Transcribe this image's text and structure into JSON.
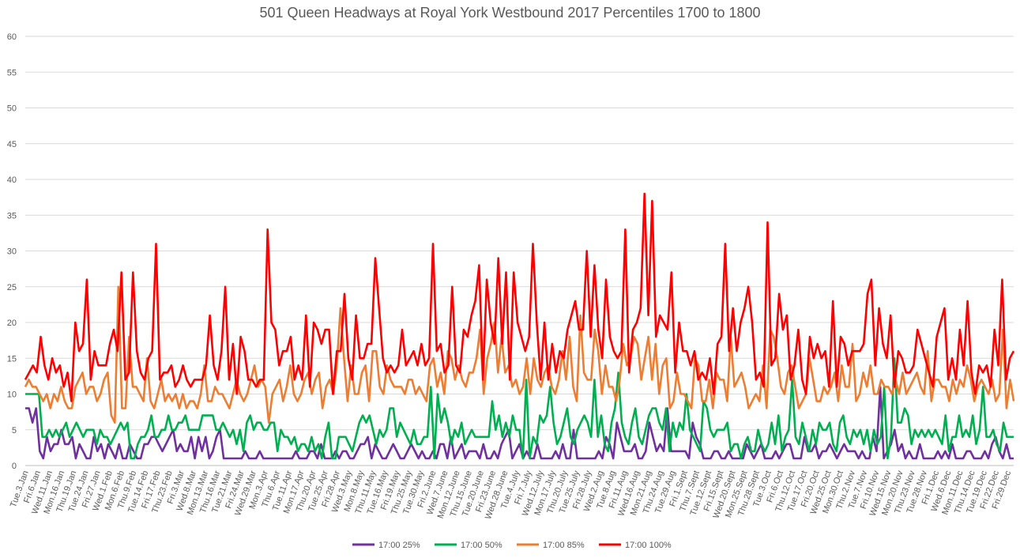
{
  "chart_data": {
    "type": "line",
    "title": "501 Queen Headways at Royal York Westbound 2017 Percentiles 1700 to 1800",
    "xlabel": "",
    "ylabel": "",
    "ylim": [
      0,
      60
    ],
    "yticks": [
      0,
      5,
      10,
      15,
      20,
      25,
      30,
      35,
      40,
      45,
      50,
      55,
      60
    ],
    "grid": true,
    "legend_position": "bottom",
    "x_tick_labels": [
      "Tue.3.Jan",
      "Fri.6.Jan",
      "Wed.11.Jan",
      "Mon.16.Jan",
      "Thu.19.Jan",
      "Tue.24.Jan",
      "Fri.27.Jan",
      "Wed.1.Feb",
      "Mon.6.Feb",
      "Thu.9.Feb",
      "Tue.14.Feb",
      "Fri.17.Feb",
      "Thu.23.Feb",
      "Fri.3.Mar",
      "Wed.8.Mar",
      "Mon.13.Mar",
      "Thu.16.Mar",
      "Tue.21.Mar",
      "Fri.24.Mar",
      "Wed.29.Mar",
      "Mon.3.Apr",
      "Thu.6.Apr",
      "Tue.11.Apr",
      "Mon.17.Apr",
      "Thu.20.Apr",
      "Tue.25.Apr",
      "Fri.28.Apr",
      "Wed.3.May",
      "Mon.8.May",
      "Thu.11.May",
      "Tue.16.May",
      "Fri.19.May",
      "Thu.25.May",
      "Tue.30.May",
      "Fri.2.June",
      "Wed.7.June",
      "Mon.12.June",
      "Thu.15.June",
      "Tue.20.June",
      "Fri.23.June",
      "Wed.28.June",
      "Tue.4.July",
      "Fri.7.July",
      "Wed.12.July",
      "Mon.17.July",
      "Thu.20.July",
      "Tue.25.July",
      "Fri.28.July",
      "Wed.2.Aug",
      "Tue.8.Aug",
      "Fri.11.Aug",
      "Wed.16.Aug",
      "Mon.21.Aug",
      "Thu.24.Aug",
      "Tue.29.Aug",
      "Fri.1.Sept",
      "Thu.7.Sept",
      "Tue.12.Sept",
      "Fri.15.Sept",
      "Wed.20.Sept",
      "Mon.25.Sept",
      "Thu.28.Sept",
      "Tue.3.Oct",
      "Fri.6.Oct",
      "Thu.12.Oct",
      "Tue.17.Oct",
      "Fri.20.Oct",
      "Wed.25.Oct",
      "Mon.30.Oct",
      "Thu.2.Nov",
      "Tue.7.Nov",
      "Fri.10.Nov",
      "Wed.15.Nov",
      "Mon.20.Nov",
      "Thu.23.Nov",
      "Tue.28.Nov",
      "Fri.1.Dec",
      "Wed.6.Dec",
      "Mon.11.Dec",
      "Thu.14.Dec",
      "Tue.19.Dec",
      "Fri.22.Dec",
      "Fri.29.Dec"
    ],
    "series": [
      {
        "name": "17:00 25%",
        "color": "#7030A0",
        "values": [
          8,
          8,
          6,
          8,
          2,
          1,
          4,
          2,
          3,
          3,
          5,
          3,
          3,
          4,
          1,
          3,
          2,
          1,
          1,
          4,
          2,
          3,
          1,
          3,
          2,
          1,
          3,
          1,
          1,
          3,
          2,
          1,
          1,
          3,
          3,
          4,
          4,
          3,
          2,
          3,
          4,
          5,
          2,
          3,
          2,
          2,
          4,
          1,
          4,
          2,
          4,
          1,
          2,
          4,
          5,
          1,
          1,
          1,
          1,
          1,
          1,
          2,
          1,
          1,
          1,
          2,
          1,
          1,
          1,
          1,
          1,
          1,
          1,
          1,
          1,
          2,
          1,
          1,
          1,
          2,
          2,
          1,
          3,
          1,
          1,
          1,
          2,
          1,
          2,
          2,
          1,
          1,
          2,
          3,
          3,
          4,
          1,
          3,
          2,
          1,
          1,
          2,
          3,
          2,
          1,
          1,
          2,
          3,
          2,
          1,
          2,
          1,
          1,
          2,
          1,
          3,
          3,
          1,
          4,
          1,
          2,
          3,
          1,
          2,
          2,
          2,
          1,
          3,
          1,
          1,
          2,
          1,
          3,
          4,
          5,
          1,
          2,
          3,
          1,
          2,
          1,
          1,
          3,
          1,
          1,
          1,
          1,
          2,
          1,
          3,
          1,
          1,
          5,
          1,
          1,
          1,
          1,
          1,
          1,
          2,
          1,
          4,
          3,
          1,
          6,
          4,
          2,
          2,
          2,
          3,
          1,
          1,
          2,
          6,
          4,
          2,
          3,
          2,
          8,
          2,
          2,
          2,
          2,
          2,
          1,
          6,
          4,
          3,
          1,
          1,
          1,
          2,
          2,
          1,
          1,
          2,
          1,
          1,
          1,
          1,
          3,
          2,
          1,
          2,
          3,
          1,
          1,
          1,
          2,
          1,
          2,
          3,
          3,
          1,
          1,
          1,
          4,
          2,
          2,
          3,
          1,
          2,
          2,
          3,
          2,
          1,
          2,
          3,
          2,
          2,
          2,
          1,
          2,
          1,
          1,
          4,
          2,
          11,
          1,
          2,
          3,
          5,
          2,
          3,
          1,
          2,
          1,
          1,
          3,
          1,
          1,
          1,
          1,
          2,
          1,
          2,
          1,
          3,
          1,
          1,
          1,
          2,
          2,
          1,
          1,
          1,
          2,
          1,
          3,
          4,
          2,
          1,
          3,
          1,
          1
        ],
        "values_note": ""
      },
      {
        "name": "17:00 50%",
        "color": "#00B050",
        "values": [
          10,
          10,
          10,
          10,
          10,
          4,
          4,
          5,
          4,
          5,
          4,
          5,
          6,
          4,
          5,
          6,
          5,
          4,
          5,
          5,
          5,
          3,
          5,
          4,
          4,
          3,
          4,
          5,
          6,
          5,
          6,
          1,
          1,
          3,
          4,
          4,
          5,
          7,
          4,
          4,
          5,
          5,
          7,
          5,
          5,
          6,
          6,
          7,
          5,
          5,
          5,
          5,
          7,
          7,
          7,
          7,
          5,
          5,
          6,
          5,
          4,
          5,
          3,
          5,
          2,
          6,
          7,
          5,
          6,
          6,
          5,
          5,
          6,
          6,
          2,
          5,
          4,
          4,
          3,
          4,
          2,
          3,
          3,
          2,
          4,
          2,
          3,
          1,
          4,
          6,
          1,
          1,
          4,
          4,
          4,
          3,
          2,
          4,
          6,
          7,
          6,
          7,
          5,
          3,
          5,
          4,
          5,
          8,
          8,
          4,
          6,
          5,
          4,
          3,
          5,
          3,
          3,
          4,
          4,
          11,
          1,
          10,
          6,
          8,
          6,
          3,
          5,
          4,
          6,
          3,
          4,
          5,
          4,
          4,
          4,
          4,
          4,
          9,
          5,
          7,
          4,
          6,
          4,
          7,
          5,
          5,
          1,
          12,
          1,
          4,
          3,
          7,
          6,
          7,
          11,
          6,
          3,
          4,
          6,
          8,
          4,
          3,
          5,
          6,
          7,
          6,
          4,
          12,
          4,
          7,
          3,
          2,
          6,
          8,
          13,
          6,
          4,
          3,
          6,
          8,
          4,
          3,
          5,
          7,
          8,
          8,
          6,
          5,
          8,
          2,
          6,
          4,
          6,
          5,
          10,
          5,
          4,
          3,
          2,
          9,
          8,
          5,
          4,
          5,
          5,
          5,
          6,
          2,
          3,
          3,
          1,
          3,
          4,
          2,
          2,
          5,
          3,
          2,
          3,
          6,
          3,
          7,
          2,
          4,
          5,
          12,
          4,
          3,
          6,
          4,
          2,
          5,
          3,
          6,
          5,
          5,
          6,
          3,
          2,
          6,
          7,
          4,
          3,
          5,
          4,
          5,
          3,
          5,
          2,
          5,
          3,
          4,
          11,
          1,
          4,
          15,
          6,
          6,
          8,
          7,
          3,
          5,
          4,
          5,
          4,
          5,
          4,
          5,
          4,
          3,
          7,
          2,
          4,
          4,
          7,
          4,
          5,
          4,
          7,
          3,
          5,
          11,
          4,
          4,
          5,
          3,
          2,
          6,
          4,
          4,
          4
        ],
        "values_note": ""
      },
      {
        "name": "17:00 85%",
        "color": "#ED7D31",
        "values": [
          11,
          12,
          11,
          11,
          10,
          9,
          10,
          8,
          10,
          9,
          11,
          9,
          8,
          8,
          11,
          12,
          13,
          10,
          11,
          11,
          9,
          10,
          12,
          13,
          7,
          6,
          25,
          8,
          8,
          18,
          11,
          11,
          10,
          9,
          15,
          9,
          8,
          10,
          12,
          9,
          10,
          9,
          10,
          8,
          10,
          8,
          9,
          9,
          8,
          10,
          14,
          9,
          9,
          11,
          10,
          10,
          9,
          8,
          10,
          12,
          10,
          9,
          10,
          12,
          14,
          11,
          12,
          11,
          6,
          10,
          11,
          12,
          9,
          11,
          14,
          10,
          9,
          10,
          12,
          13,
          10,
          12,
          13,
          8,
          11,
          12,
          10,
          14,
          22,
          15,
          9,
          14,
          10,
          10,
          13,
          14,
          9,
          16,
          16,
          11,
          10,
          14,
          12,
          11,
          11,
          11,
          10,
          12,
          12,
          10,
          11,
          10,
          9,
          14,
          15,
          11,
          13,
          10,
          16,
          15,
          12,
          14,
          12,
          11,
          13,
          13,
          15,
          19,
          10,
          15,
          17,
          20,
          13,
          18,
          13,
          14,
          11,
          12,
          10,
          11,
          15,
          10,
          15,
          12,
          11,
          13,
          14,
          11,
          10,
          12,
          16,
          12,
          18,
          11,
          9,
          21,
          13,
          12,
          12,
          19,
          16,
          10,
          14,
          11,
          11,
          9,
          12,
          17,
          14,
          15,
          18,
          17,
          12,
          15,
          18,
          12,
          17,
          10,
          14,
          15,
          8,
          9,
          13,
          10,
          10,
          9,
          8,
          15,
          14,
          9,
          9,
          12,
          8,
          13,
          12,
          12,
          9,
          18,
          11,
          12,
          13,
          11,
          8,
          9,
          10,
          9,
          14,
          8,
          19,
          18,
          15,
          11,
          10,
          13,
          14,
          11,
          8,
          9,
          10,
          15,
          12,
          9,
          9,
          11,
          10,
          11,
          13,
          9,
          14,
          11,
          11,
          17,
          9,
          10,
          13,
          11,
          14,
          10,
          10,
          12,
          11,
          11,
          10,
          12,
          10,
          13,
          10,
          11,
          12,
          13,
          11,
          10,
          16,
          9,
          12,
          12,
          11,
          11,
          9,
          12,
          10,
          12,
          11,
          14,
          12,
          9,
          11,
          12,
          11,
          10,
          12,
          9,
          10,
          19,
          8,
          12,
          9
        ],
        "values_note": ""
      },
      {
        "name": "17:00 100%",
        "color": "#FF0000",
        "values": [
          12,
          13,
          14,
          13,
          18,
          14,
          12,
          15,
          13,
          14,
          11,
          13,
          9,
          20,
          16,
          17,
          26,
          12,
          16,
          14,
          14,
          14,
          17,
          19,
          16,
          27,
          12,
          13,
          27,
          16,
          13,
          12,
          15,
          16,
          31,
          12,
          13,
          13,
          14,
          11,
          12,
          14,
          12,
          11,
          12,
          12,
          12,
          14,
          21,
          14,
          12,
          16,
          25,
          12,
          17,
          10,
          18,
          16,
          12,
          12,
          11,
          12,
          12,
          33,
          20,
          19,
          14,
          16,
          16,
          18,
          12,
          14,
          12,
          21,
          11,
          20,
          19,
          17,
          19,
          19,
          10,
          16,
          16,
          24,
          15,
          12,
          21,
          15,
          15,
          17,
          17,
          29,
          22,
          15,
          13,
          14,
          13,
          14,
          19,
          14,
          15,
          16,
          14,
          17,
          14,
          15,
          31,
          16,
          17,
          13,
          14,
          25,
          14,
          13,
          19,
          18,
          21,
          23,
          28,
          12,
          26,
          20,
          17,
          29,
          17,
          27,
          12,
          27,
          20,
          18,
          16,
          18,
          31,
          20,
          12,
          20,
          12,
          17,
          13,
          16,
          15,
          19,
          21,
          23,
          19,
          19,
          30,
          18,
          28,
          19,
          15,
          26,
          18,
          16,
          15,
          16,
          33,
          13,
          19,
          20,
          22,
          38,
          21,
          37,
          18,
          21,
          20,
          19,
          27,
          13,
          20,
          16,
          16,
          14,
          16,
          12,
          13,
          12,
          15,
          10,
          17,
          18,
          31,
          16,
          22,
          16,
          20,
          22,
          25,
          20,
          12,
          13,
          11,
          34,
          14,
          15,
          24,
          19,
          21,
          12,
          14,
          19,
          12,
          10,
          18,
          15,
          17,
          15,
          16,
          11,
          23,
          11,
          18,
          17,
          14,
          16,
          16,
          16,
          17,
          24,
          26,
          14,
          22,
          17,
          15,
          21,
          11,
          16,
          15,
          13,
          13,
          14,
          19,
          17,
          15,
          13,
          11,
          18,
          20,
          22,
          12,
          15,
          12,
          19,
          14,
          23,
          13,
          10,
          14,
          13,
          14,
          11,
          19,
          14,
          26,
          12,
          15,
          16
        ],
        "values_note": ""
      }
    ]
  }
}
